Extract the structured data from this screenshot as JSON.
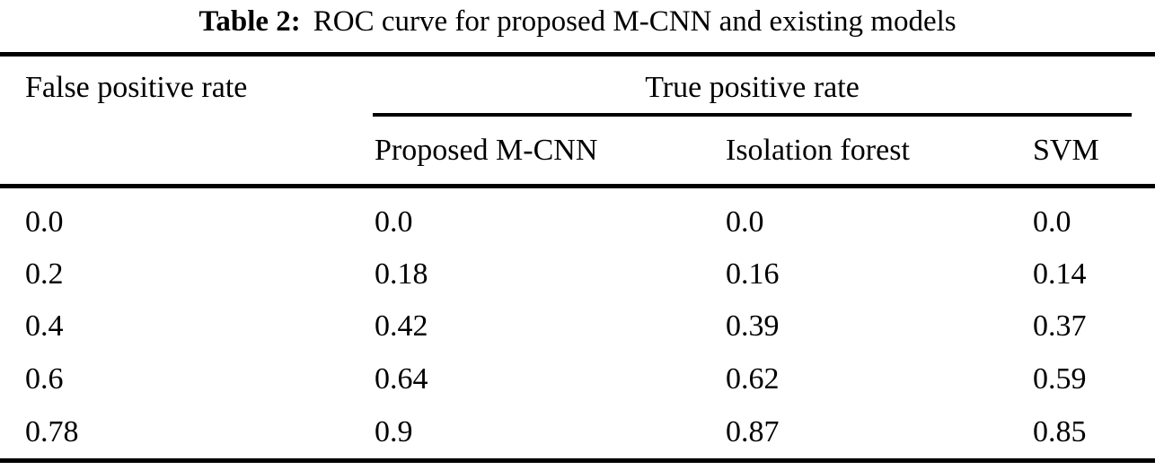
{
  "caption": {
    "label": "Table 2:",
    "text": "ROC curve for proposed M-CNN and existing models"
  },
  "table": {
    "fpr_header": "False positive rate",
    "tpr_group_header": "True positive rate",
    "sub_headers": [
      "Proposed M-CNN",
      "Isolation forest",
      "SVM"
    ],
    "rows": [
      {
        "fpr": "0.0",
        "mcnn": "0.0",
        "iforest": "0.0",
        "svm": "0.0"
      },
      {
        "fpr": "0.2",
        "mcnn": "0.18",
        "iforest": "0.16",
        "svm": "0.14"
      },
      {
        "fpr": "0.4",
        "mcnn": "0.42",
        "iforest": "0.39",
        "svm": "0.37"
      },
      {
        "fpr": "0.6",
        "mcnn": "0.64",
        "iforest": "0.62",
        "svm": "0.59"
      },
      {
        "fpr": "0.78",
        "mcnn": "0.9",
        "iforest": "0.87",
        "svm": "0.85"
      }
    ]
  },
  "colors": {
    "text": "#000000",
    "background": "#ffffff",
    "rule": "#000000"
  },
  "chart_data": {
    "type": "table",
    "title": "Table 2: ROC curve for proposed M-CNN and existing models",
    "columns": [
      "False positive rate",
      "Proposed M-CNN",
      "Isolation forest",
      "SVM"
    ],
    "group_header": "True positive rate",
    "false_positive_rate": [
      0.0,
      0.2,
      0.4,
      0.6,
      0.78
    ],
    "series": [
      {
        "name": "Proposed M-CNN",
        "values": [
          0.0,
          0.18,
          0.42,
          0.64,
          0.9
        ]
      },
      {
        "name": "Isolation forest",
        "values": [
          0.0,
          0.16,
          0.39,
          0.62,
          0.87
        ]
      },
      {
        "name": "SVM",
        "values": [
          0.0,
          0.14,
          0.37,
          0.59,
          0.85
        ]
      }
    ]
  }
}
